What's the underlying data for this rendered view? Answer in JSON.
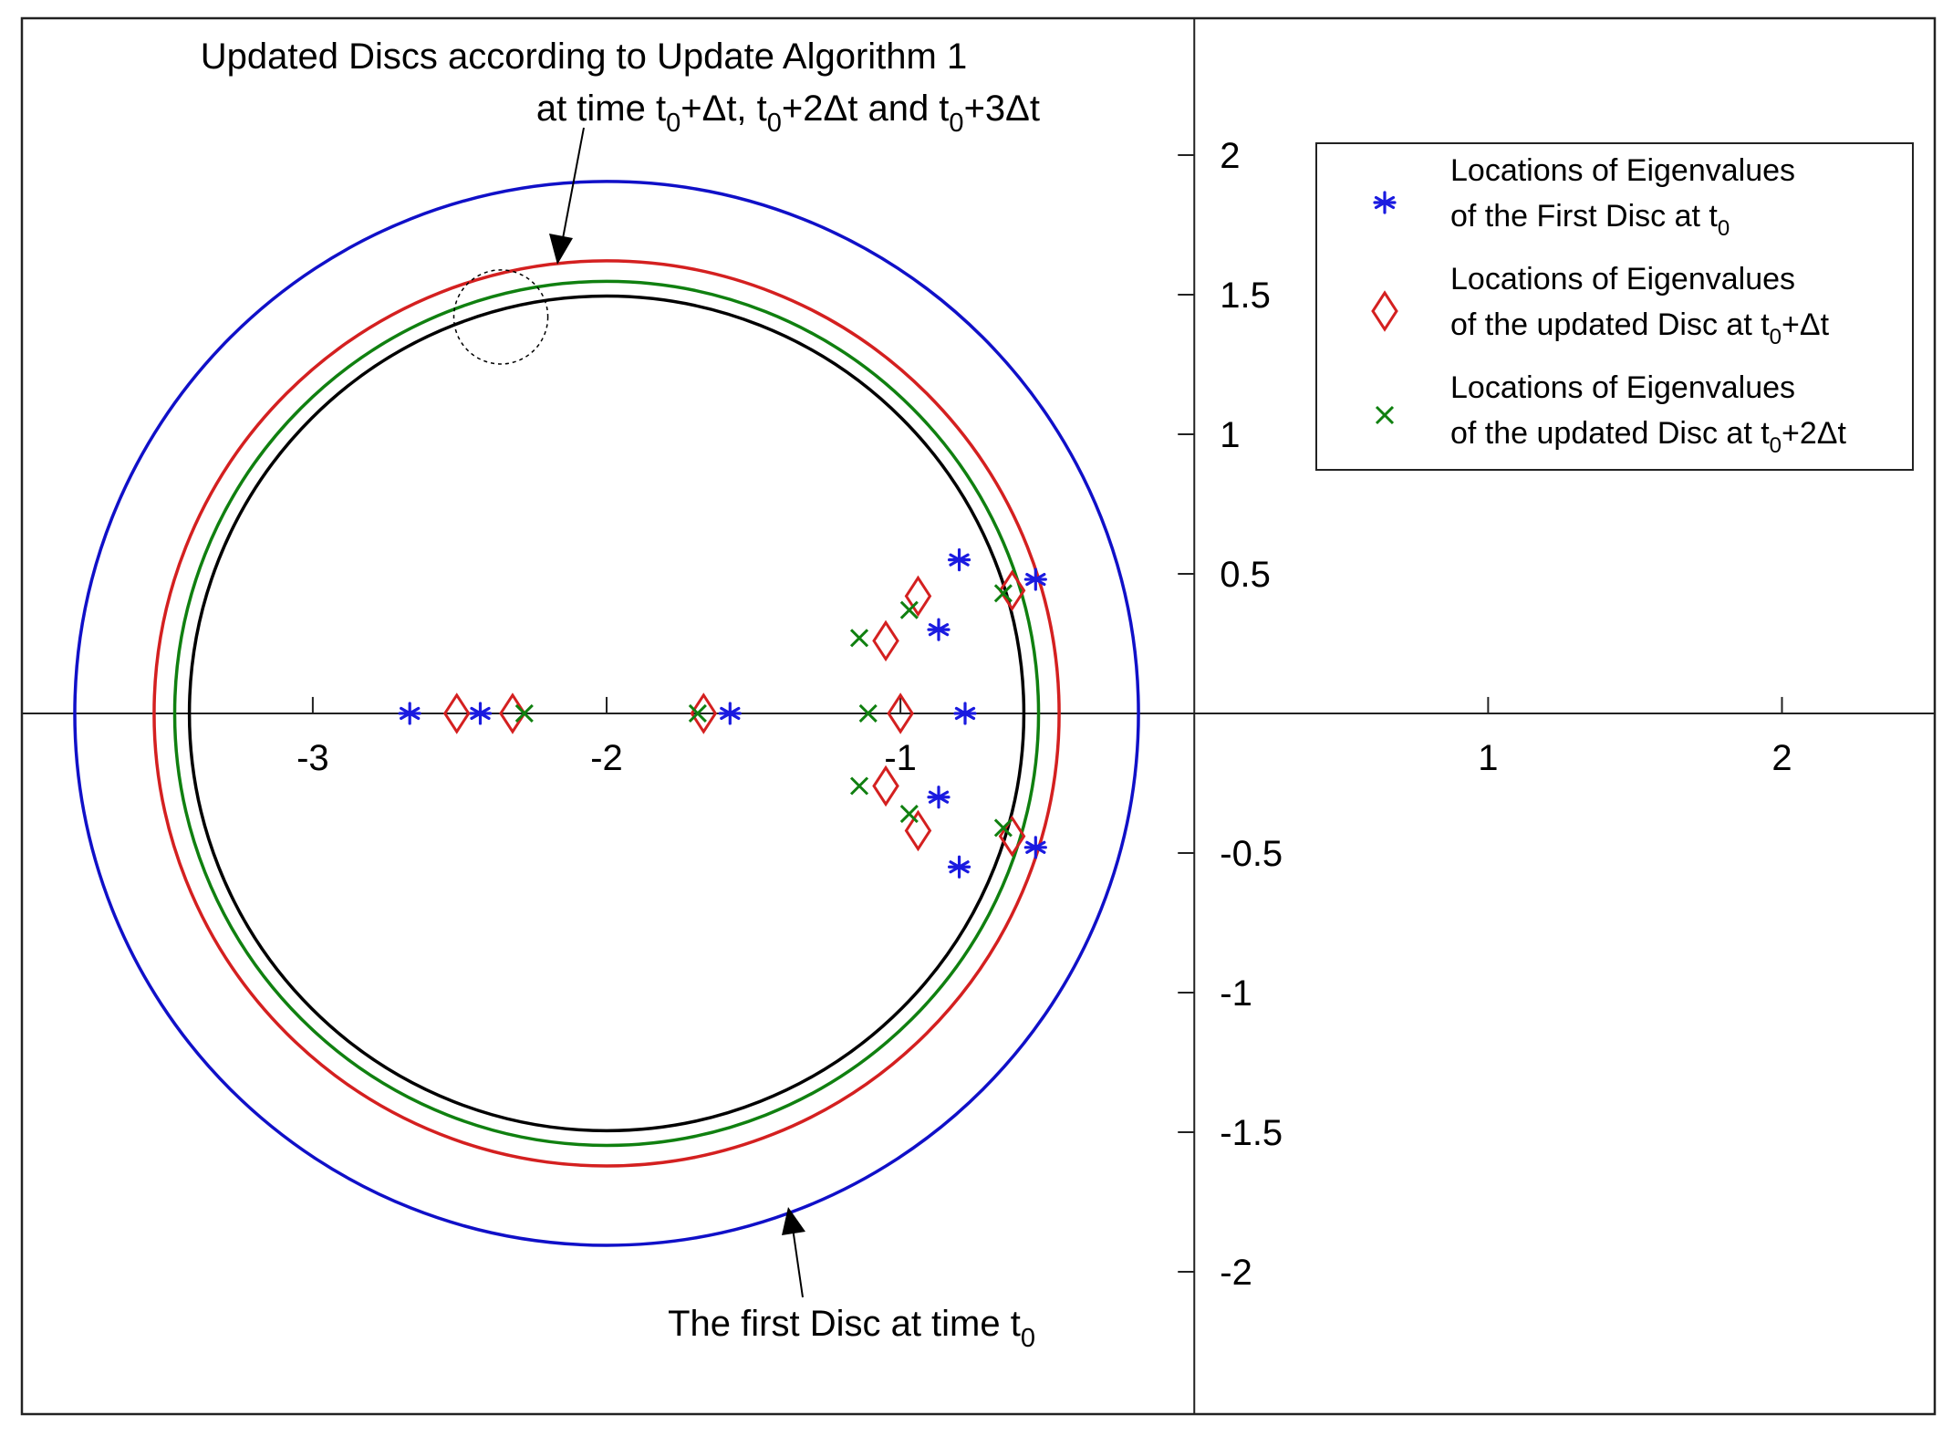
{
  "chart_data": {
    "type": "scatter",
    "xlim": [
      -3.99,
      2.52
    ],
    "ylim": [
      -2.51,
      2.49
    ],
    "xticks": [
      -3,
      -2,
      -1,
      1,
      2
    ],
    "yticks": [
      2,
      1.5,
      1,
      0.5,
      -0.5,
      -1,
      -1.5,
      -2
    ],
    "xtick_labels": [
      "-3",
      "-2",
      "-1",
      "1",
      "2"
    ],
    "ytick_labels": [
      "2",
      "1.5",
      "1",
      "0.5",
      "-0.5",
      "-1",
      "-1.5",
      "-2"
    ],
    "grid": false,
    "legend_position": "top-right",
    "circles": [
      {
        "name": "first-disc",
        "center": [
          -2.0,
          0
        ],
        "radius": 1.81,
        "color": "#1010c8"
      },
      {
        "name": "updated-disc-1",
        "center": [
          -2.0,
          0
        ],
        "radius": 1.54,
        "color": "#d42020"
      },
      {
        "name": "updated-disc-2",
        "center": [
          -2.0,
          0
        ],
        "radius": 1.47,
        "color": "#108010"
      },
      {
        "name": "updated-disc-3",
        "center": [
          -2.0,
          0
        ],
        "radius": 1.42,
        "color": "#000000"
      }
    ],
    "highlight": {
      "center": [
        -2.36,
        1.42
      ],
      "radius": 0.16
    },
    "series": [
      {
        "marker": "asterisk",
        "color": "#1a1ae0",
        "legend": [
          "Locations of Eigenvalues",
          "of the First Disc at t",
          "0",
          ""
        ],
        "points": [
          [
            -2.67,
            0
          ],
          [
            -2.43,
            0
          ],
          [
            -1.58,
            0
          ],
          [
            -0.78,
            0
          ],
          [
            -0.8,
            0.55
          ],
          [
            -0.8,
            -0.55
          ],
          [
            -0.87,
            0.3
          ],
          [
            -0.87,
            -0.3
          ],
          [
            -0.54,
            0.48
          ],
          [
            -0.54,
            -0.48
          ]
        ]
      },
      {
        "marker": "diamond",
        "color": "#d42020",
        "legend": [
          "Locations of Eigenvalues",
          "of the updated Disc at t",
          "0",
          "+Δt"
        ],
        "points": [
          [
            -2.51,
            0
          ],
          [
            -2.32,
            0
          ],
          [
            -1.67,
            0
          ],
          [
            -1.0,
            0
          ],
          [
            -0.94,
            0.42
          ],
          [
            -0.94,
            -0.42
          ],
          [
            -1.05,
            0.26
          ],
          [
            -1.05,
            -0.26
          ],
          [
            -0.62,
            0.44
          ],
          [
            -0.62,
            -0.44
          ]
        ]
      },
      {
        "marker": "x",
        "color": "#108010",
        "legend": [
          "Locations of Eigenvalues",
          "of the updated Disc at t",
          "0",
          "+2Δt"
        ],
        "points": [
          [
            -2.28,
            0
          ],
          [
            -1.69,
            0
          ],
          [
            -1.11,
            0
          ],
          [
            -0.97,
            0.37
          ],
          [
            -0.97,
            -0.36
          ],
          [
            -1.14,
            0.27
          ],
          [
            -1.14,
            -0.26
          ],
          [
            -0.65,
            0.43
          ],
          [
            -0.65,
            -0.41
          ]
        ]
      }
    ],
    "annotations": {
      "top_line1": "Updated Discs according to Update Algorithm 1",
      "top_line2_parts": [
        "at time t",
        "0",
        "+Δt, t",
        "0",
        "+2Δt and t",
        "0",
        "+3Δt"
      ],
      "bottom_parts": [
        "The first Disc at time t",
        "0"
      ]
    }
  }
}
